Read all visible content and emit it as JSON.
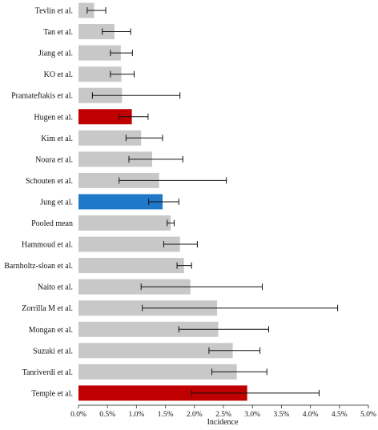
{
  "chart_data": {
    "type": "bar",
    "orientation": "horizontal",
    "xlabel": "Incidence",
    "ylabel": "",
    "title": "",
    "xlim": [
      0,
      5.0
    ],
    "x_ticks": [
      "0.0%",
      "0.5%",
      "1.0%",
      "1.5%",
      "2.0%",
      "2.5%",
      "3.0%",
      "3.5%",
      "4.0%",
      "4.5%",
      "5.0%"
    ],
    "grid": false,
    "colors": {
      "default": "#c8c8c8",
      "red": "#c00000",
      "blue": "#1f78c8"
    },
    "categories": [
      "Tevlin et al.",
      "Tan et al.",
      "Jiang et al.",
      "KO et al.",
      "Pramateftakis et al.",
      "Hugen et al.",
      "Kim et al.",
      "Noura  et al.",
      "Schouten et al.",
      "Jung et al.",
      "Pooled mean",
      "Hammoud et al.",
      "Barnholtz-sloan et al.",
      "Naito et al.",
      "Zorrilla M et al.",
      "Mongan et al.",
      "Suzuki et al.",
      "Tanriverdi et al.",
      "Temple et al."
    ],
    "values": [
      0.27,
      0.62,
      0.73,
      0.74,
      0.75,
      0.92,
      1.08,
      1.27,
      1.39,
      1.45,
      1.59,
      1.75,
      1.82,
      1.93,
      2.39,
      2.41,
      2.66,
      2.73,
      2.91
    ],
    "err_low": [
      0.15,
      0.41,
      0.55,
      0.55,
      0.24,
      0.7,
      0.82,
      0.87,
      0.7,
      1.21,
      1.53,
      1.47,
      1.7,
      1.08,
      1.1,
      1.73,
      2.25,
      2.3,
      1.95
    ],
    "err_high": [
      0.47,
      0.9,
      0.93,
      0.96,
      1.75,
      1.2,
      1.45,
      1.8,
      2.55,
      1.73,
      1.65,
      2.05,
      1.95,
      3.17,
      4.47,
      3.28,
      3.13,
      3.25,
      4.15
    ],
    "bar_colors": [
      "default",
      "default",
      "default",
      "default",
      "default",
      "red",
      "default",
      "default",
      "default",
      "blue",
      "default",
      "default",
      "default",
      "default",
      "default",
      "default",
      "default",
      "default",
      "red"
    ]
  }
}
